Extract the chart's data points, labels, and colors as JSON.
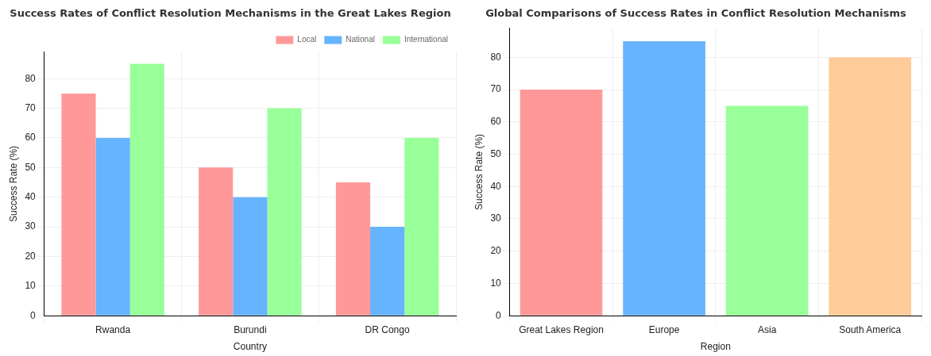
{
  "chart_data": [
    {
      "type": "bar",
      "title": "Success Rates of Conflict Resolution Mechanisms in the Great Lakes Region",
      "xlabel": "Country",
      "ylabel": "Success Rate (%)",
      "categories": [
        "Rwanda",
        "Burundi",
        "DR Congo"
      ],
      "series": [
        {
          "name": "Local",
          "color": "#ff9999",
          "values": [
            75,
            50,
            45
          ]
        },
        {
          "name": "National",
          "color": "#66b3ff",
          "values": [
            60,
            40,
            30
          ]
        },
        {
          "name": "International",
          "color": "#99ff99",
          "values": [
            85,
            70,
            60
          ]
        }
      ],
      "ylim": [
        0,
        89
      ],
      "yticks": [
        0,
        10,
        20,
        30,
        40,
        50,
        60,
        70,
        80
      ],
      "grid": true,
      "legend": "top right"
    },
    {
      "type": "bar",
      "title": "Global Comparisons of Success Rates in Conflict Resolution Mechanisms",
      "xlabel": "Region",
      "ylabel": "Success Rate (%)",
      "categories": [
        "Great Lakes Region",
        "Europe",
        "Asia",
        "South America"
      ],
      "values": [
        70,
        85,
        65,
        80
      ],
      "colors": [
        "#ff9999",
        "#66b3ff",
        "#99ff99",
        "#ffcc99"
      ],
      "ylim": [
        0,
        89
      ],
      "yticks": [
        0,
        10,
        20,
        30,
        40,
        50,
        60,
        70,
        80
      ],
      "grid": true
    }
  ]
}
